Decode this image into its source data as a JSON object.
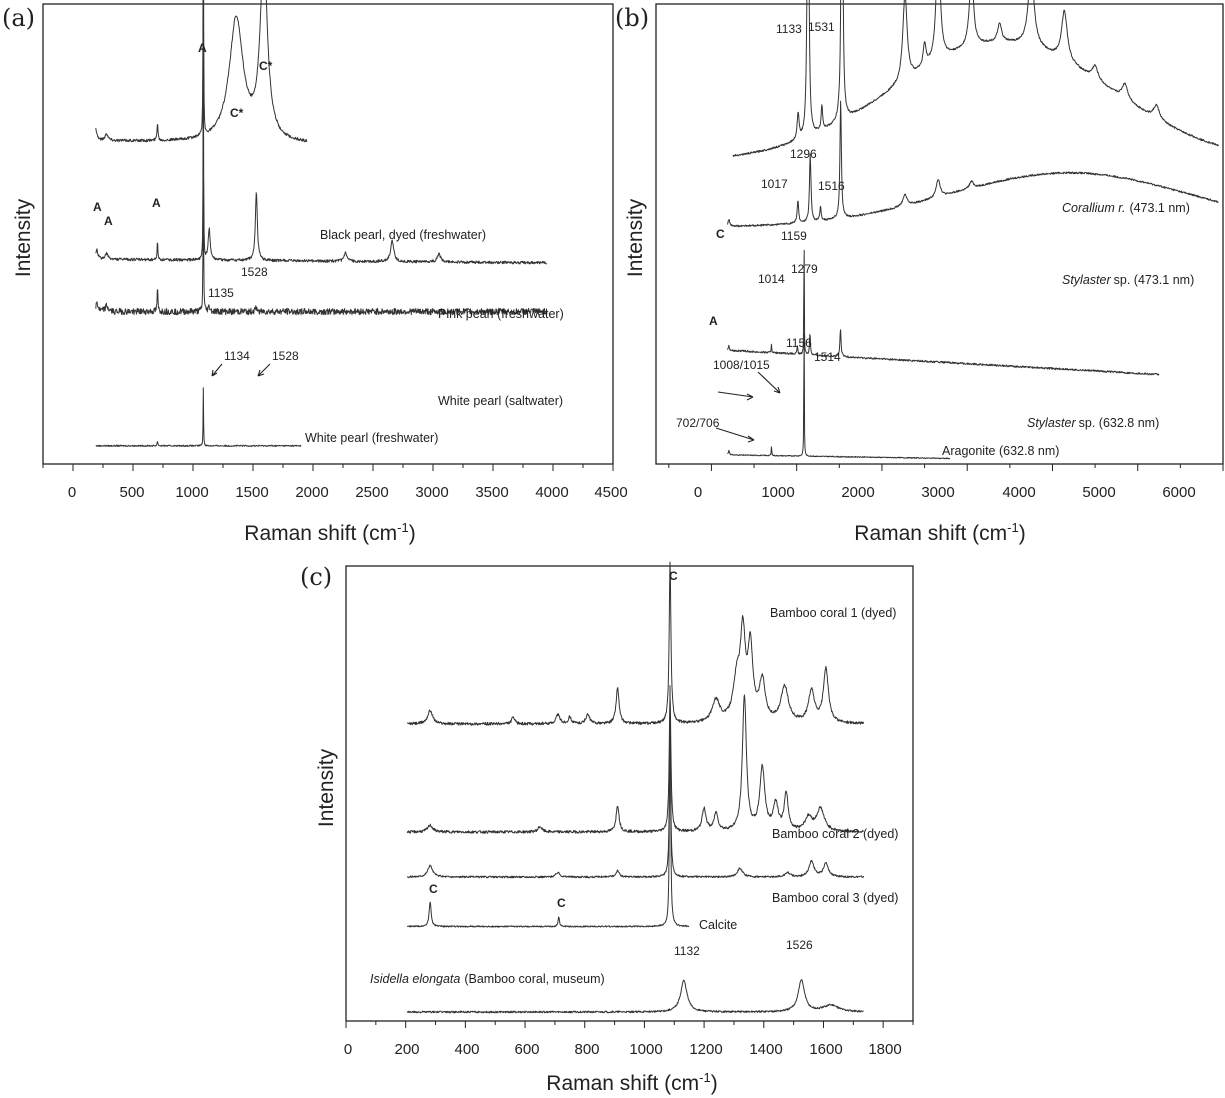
{
  "chart_data": [
    {
      "panel": "(a)",
      "type": "line",
      "xlabel": "Raman shift (cm-1)",
      "ylabel": "Intensity",
      "xlim": [
        -250,
        4500
      ],
      "xticks": [
        "0",
        "500",
        "1000",
        "1500",
        "2000",
        "2500",
        "3000",
        "3500",
        "4000",
        "4500"
      ],
      "series": [
        {
          "name": "Black pearl, dyed (freshwater)",
          "x_range": [
            190,
            1950
          ],
          "baseline": 0.71,
          "slope": -0.02,
          "noise": 0.003,
          "peaks": [
            [
              190,
              0.025,
              12
            ],
            [
              280,
              0.015,
              15
            ],
            [
              704,
              0.04,
              5
            ],
            [
              1086,
              0.72,
              2.2
            ],
            [
              1360,
              0.27,
              70
            ],
            [
              1590,
              0.4,
              36
            ]
          ]
        },
        {
          "name": "Pink pearl (freshwater)",
          "x_range": [
            190,
            3950
          ],
          "baseline": 0.45,
          "slope": -0.01,
          "noise": 0.003,
          "peaks": [
            [
              200,
              0.02,
              10
            ],
            [
              280,
              0.012,
              15
            ],
            [
              704,
              0.04,
              4
            ],
            [
              1086,
              0.55,
              2.2
            ],
            [
              1135,
              0.07,
              10
            ],
            [
              1528,
              0.15,
              10
            ],
            [
              2270,
              0.018,
              14
            ],
            [
              2660,
              0.045,
              16
            ],
            [
              3050,
              0.018,
              16
            ]
          ]
        },
        {
          "name": "White pearl (saltwater)",
          "x_range": [
            190,
            3950
          ],
          "baseline": 0.335,
          "slope": 0.0,
          "noise": 0.007,
          "peaks": [
            [
              200,
              0.02,
              10
            ],
            [
              280,
              0.012,
              15
            ],
            [
              704,
              0.05,
              4
            ],
            [
              1086,
              0.45,
              2.2
            ],
            [
              1134,
              0.01,
              10
            ],
            [
              1528,
              0.008,
              10
            ]
          ]
        },
        {
          "name": "White pearl (freshwater)",
          "x_range": [
            190,
            1900
          ],
          "baseline": 0.04,
          "slope": 0.0,
          "noise": 0.0015,
          "peaks": [
            [
              704,
              0.01,
              4
            ],
            [
              1086,
              0.13,
              2.2
            ]
          ]
        }
      ],
      "annotations": [
        "A",
        "A",
        "A",
        "A",
        "C*",
        "C*",
        "1135",
        "1528",
        "1134",
        "1528"
      ]
    },
    {
      "panel": "(b)",
      "type": "line",
      "xlabel": "Raman shift (cm-1)",
      "ylabel": "Intensity",
      "xlim": [
        -650,
        6000
      ],
      "xticks": [
        "0",
        "1000",
        "2000",
        "3000",
        "4000",
        "5000",
        "6000"
      ],
      "series": [
        {
          "name": "Corallium r. (473.1 nm)",
          "x_range": [
            250,
            5950
          ],
          "baseline": 0.665,
          "slope": 0.0,
          "noise": 0.002,
          "broad": [
            [
              3400,
              0.26,
              1800
            ]
          ],
          "peaks": [
            [
              1017,
              0.055,
              14
            ],
            [
              1133,
              0.9,
              10
            ],
            [
              1296,
              0.055,
              10
            ],
            [
              1531,
              0.9,
              10
            ],
            [
              2270,
              0.19,
              30
            ],
            [
              2500,
              0.05,
              20
            ],
            [
              2660,
              0.26,
              28
            ],
            [
              3050,
              0.17,
              28
            ],
            [
              3380,
              0.04,
              28
            ],
            [
              3750,
              0.17,
              40
            ],
            [
              4140,
              0.11,
              40
            ],
            [
              4500,
              0.03,
              40
            ],
            [
              4850,
              0.035,
              40
            ],
            [
              5220,
              0.03,
              40
            ]
          ]
        },
        {
          "name": "Stylaster sp. (473.1 nm)",
          "x_range": [
            190,
            5950
          ],
          "baseline": 0.52,
          "slope": 0.0,
          "noise": 0.002,
          "broad": [
            [
              4200,
              0.12,
              2000
            ]
          ],
          "peaks": [
            [
              205,
              0.015,
              12
            ],
            [
              1014,
              0.05,
              10
            ],
            [
              1159,
              0.15,
              10
            ],
            [
              1279,
              0.03,
              10
            ],
            [
              1516,
              0.26,
              10
            ],
            [
              2270,
              0.025,
              30
            ],
            [
              2660,
              0.04,
              28
            ],
            [
              3050,
              0.015,
              28
            ]
          ]
        },
        {
          "name": "Stylaster sp. (632.8 nm)",
          "x_range": [
            190,
            5250
          ],
          "baseline": 0.25,
          "slope": -0.07,
          "noise": 0.002,
          "peaks": [
            [
              205,
              0.01,
              8
            ],
            [
              704,
              0.02,
              4
            ],
            [
              1008,
              0.02,
              5
            ],
            [
              1086,
              0.34,
              2.5
            ],
            [
              1156,
              0.05,
              6
            ],
            [
              1514,
              0.06,
              8
            ]
          ]
        },
        {
          "name": "Aragonite (632.8 nm)",
          "x_range": [
            190,
            2800
          ],
          "baseline": 0.02,
          "slope": -0.02,
          "noise": 0.001,
          "peaks": [
            [
              205,
              0.01,
              8
            ],
            [
              704,
              0.02,
              4
            ],
            [
              1086,
              0.4,
              2.5
            ]
          ]
        }
      ],
      "annotations": [
        "1133",
        "1531",
        "1296",
        "1017",
        "1516",
        "C",
        "1159",
        "1014",
        "1279",
        "A",
        "1156",
        "1008/1015",
        "1514",
        "702/706"
      ]
    },
    {
      "panel": "(c)",
      "type": "line",
      "xlabel": "Raman shift (cm-1)",
      "ylabel": "Intensity",
      "xlim": [
        0,
        1900
      ],
      "xticks": [
        "0",
        "200",
        "400",
        "600",
        "800",
        "1000",
        "1200",
        "1400",
        "1600",
        "1800"
      ],
      "series": [
        {
          "name": "Bamboo coral 1 (dyed)",
          "x_range": [
            205,
            1735
          ],
          "baseline": 0.66,
          "slope": 0.0,
          "noise": 0.003,
          "peaks": [
            [
              282,
              0.03,
              10
            ],
            [
              560,
              0.015,
              6
            ],
            [
              710,
              0.02,
              8
            ],
            [
              750,
              0.015,
              6
            ],
            [
              810,
              0.02,
              8
            ],
            [
              910,
              0.08,
              6
            ],
            [
              1086,
              0.36,
              3.5
            ],
            [
              1240,
              0.05,
              15
            ],
            [
              1310,
              0.09,
              15
            ],
            [
              1330,
              0.18,
              10
            ],
            [
              1355,
              0.16,
              10
            ],
            [
              1395,
              0.09,
              12
            ],
            [
              1470,
              0.08,
              15
            ],
            [
              1560,
              0.07,
              12
            ],
            [
              1608,
              0.12,
              10
            ]
          ]
        },
        {
          "name": "Bamboo coral 2 (dyed)",
          "x_range": [
            205,
            1735
          ],
          "baseline": 0.42,
          "slope": 0.0,
          "noise": 0.003,
          "peaks": [
            [
              282,
              0.015,
              10
            ],
            [
              650,
              0.012,
              8
            ],
            [
              910,
              0.06,
              6
            ],
            [
              1086,
              0.3,
              3.5
            ],
            [
              1200,
              0.05,
              8
            ],
            [
              1240,
              0.04,
              8
            ],
            [
              1335,
              0.3,
              8
            ],
            [
              1395,
              0.14,
              10
            ],
            [
              1440,
              0.06,
              10
            ],
            [
              1475,
              0.08,
              8
            ],
            [
              1550,
              0.03,
              15
            ],
            [
              1590,
              0.05,
              15
            ]
          ]
        },
        {
          "name": "Bamboo coral 3 (dyed)",
          "x_range": [
            205,
            1735
          ],
          "baseline": 0.32,
          "slope": 0.0,
          "noise": 0.002,
          "peaks": [
            [
              282,
              0.025,
              10
            ],
            [
              710,
              0.01,
              8
            ],
            [
              910,
              0.015,
              6
            ],
            [
              1086,
              0.3,
              3
            ],
            [
              1320,
              0.02,
              10
            ],
            [
              1480,
              0.01,
              10
            ],
            [
              1560,
              0.035,
              10
            ],
            [
              1608,
              0.03,
              10
            ]
          ]
        },
        {
          "name": "Calcite",
          "x_range": [
            205,
            1150
          ],
          "baseline": 0.21,
          "slope": 0.0,
          "noise": 0.0015,
          "peaks": [
            [
              282,
              0.055,
              4
            ],
            [
              713,
              0.02,
              3
            ],
            [
              1086,
              0.54,
              2.2
            ]
          ]
        },
        {
          "name": "Isidella elongata (Bamboo coral, museum)",
          "x_range": [
            205,
            1735
          ],
          "baseline": 0.02,
          "slope": 0.0,
          "noise": 0.002,
          "peaks": [
            [
              1132,
              0.07,
              13
            ],
            [
              1526,
              0.07,
              13
            ],
            [
              1625,
              0.015,
              30
            ]
          ]
        }
      ],
      "annotations": [
        "C",
        "C",
        "C",
        "1132",
        "1526"
      ]
    }
  ]
}
